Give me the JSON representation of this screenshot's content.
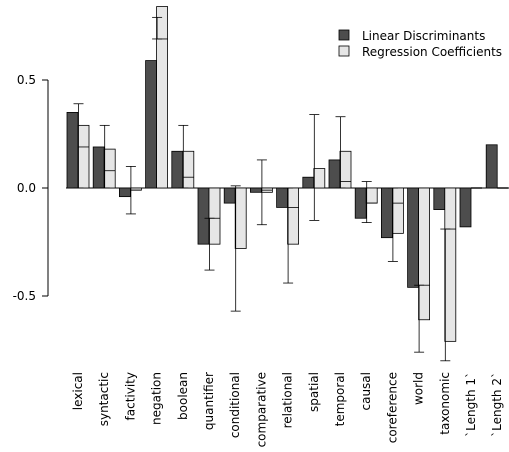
{
  "chart_data": {
    "type": "bar",
    "title": "",
    "xlabel": "",
    "ylabel": "",
    "ylim": [
      -0.8,
      0.84
    ],
    "yticks": [
      0.5,
      0.0,
      -0.5
    ],
    "ytick_labels": [
      "0.5",
      "0.0",
      "-0.5"
    ],
    "grid": false,
    "legend_position": "top-right",
    "categories": [
      "lexical",
      "syntactic",
      "factivity",
      "negation",
      "boolean",
      "quantifier",
      "conditional",
      "comparative",
      "relational",
      "spatial",
      "temporal",
      "causal",
      "coreference",
      "world",
      "taxonomic",
      "`Length 1`",
      "`Length 2`"
    ],
    "series": [
      {
        "name": "Linear Discriminants",
        "color": "#4d4d4d",
        "values": [
          0.35,
          0.19,
          -0.04,
          0.59,
          0.17,
          -0.26,
          -0.07,
          -0.02,
          -0.09,
          0.05,
          0.13,
          -0.14,
          -0.23,
          -0.46,
          -0.1,
          -0.18,
          0.2
        ]
      },
      {
        "name": "Regression Coefficients",
        "color": "#e6e6e6",
        "values": [
          0.29,
          0.18,
          -0.01,
          0.84,
          0.17,
          -0.26,
          -0.28,
          -0.02,
          -0.26,
          0.09,
          0.17,
          -0.07,
          -0.21,
          -0.61,
          -0.71,
          0.0,
          0.0
        ],
        "median": [
          0.19,
          0.08,
          -0.01,
          0.69,
          0.05,
          -0.14,
          0.0,
          -0.01,
          -0.09,
          0.0,
          0.03,
          -0.07,
          -0.07,
          -0.45,
          -0.19,
          0.0,
          0.0
        ],
        "error_low": [
          0.0,
          0.0,
          -0.12,
          0.69,
          0.0,
          -0.38,
          -0.57,
          -0.17,
          -0.44,
          -0.15,
          0.0,
          -0.16,
          -0.34,
          -0.76,
          -0.8,
          0.0,
          0.0
        ],
        "error_high": [
          0.39,
          0.29,
          0.1,
          0.79,
          0.29,
          -0.14,
          0.01,
          0.13,
          0.0,
          0.34,
          0.33,
          0.03,
          0.0,
          -0.45,
          -0.19,
          0.0,
          0.0
        ]
      }
    ]
  }
}
